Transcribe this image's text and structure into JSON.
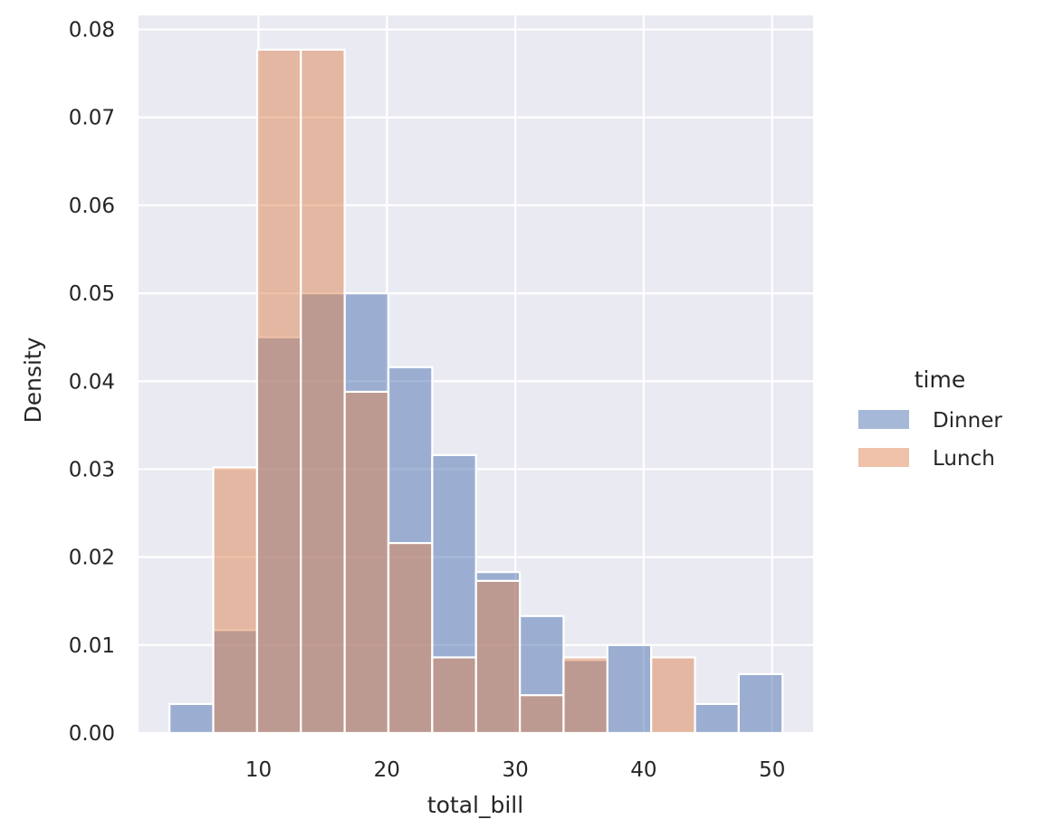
{
  "chart_data": {
    "type": "bar",
    "subtype": "histogram",
    "xlabel": "total_bill",
    "ylabel": "Density",
    "xlim": [
      0.66,
      53.19
    ],
    "ylim": [
      0,
      0.0816
    ],
    "x_ticks": [
      10,
      20,
      30,
      40,
      50
    ],
    "x_tick_labels": [
      "10",
      "20",
      "30",
      "40",
      "50"
    ],
    "y_ticks": [
      0.0,
      0.01,
      0.02,
      0.03,
      0.04,
      0.05,
      0.06,
      0.07,
      0.08
    ],
    "y_tick_labels": [
      "0.00",
      "0.01",
      "0.02",
      "0.03",
      "0.04",
      "0.05",
      "0.06",
      "0.07",
      "0.08"
    ],
    "grid": true,
    "background": "#eaeaf2",
    "bin_edges": [
      3.07,
      6.48,
      9.89,
      13.3,
      16.71,
      20.12,
      23.53,
      26.94,
      30.35,
      33.76,
      37.17,
      40.58,
      43.99,
      47.4,
      50.81
    ],
    "legend": {
      "title": "time",
      "placement": "right",
      "entries": [
        "Dinner",
        "Lunch"
      ]
    },
    "series": [
      {
        "name": "Dinner",
        "color": "#4c72b0",
        "opacity": 0.5,
        "values": [
          0.0033,
          0.0117,
          0.045,
          0.05,
          0.05,
          0.0416,
          0.0316,
          0.0183,
          0.0133,
          0.0083,
          0.01,
          0.0,
          0.0033,
          0.0067
        ]
      },
      {
        "name": "Lunch",
        "color": "#dd8452",
        "opacity": 0.5,
        "values": [
          0.0,
          0.0302,
          0.0777,
          0.0777,
          0.0388,
          0.0216,
          0.0086,
          0.0173,
          0.0043,
          0.0086,
          0.0,
          0.0086,
          0.0,
          0.0
        ]
      }
    ]
  }
}
